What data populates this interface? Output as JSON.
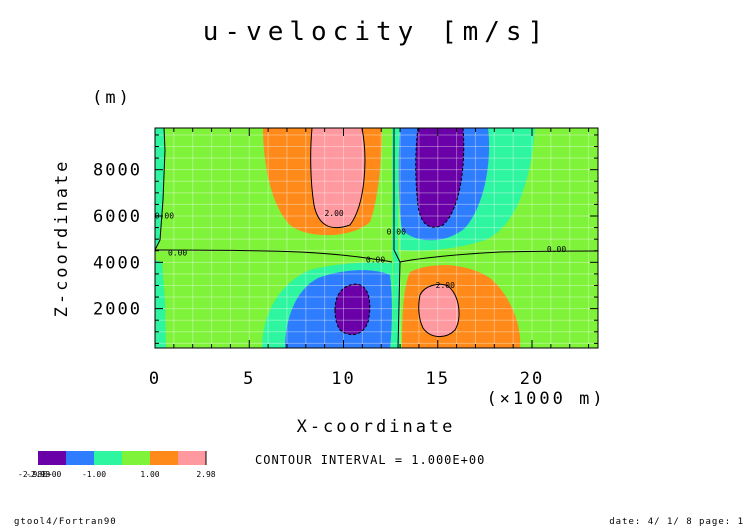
{
  "chart_data": {
    "type": "heatmap",
    "title": "u-velocity [m/s]",
    "xlabel": "X-coordinate",
    "xunit": "(×1000 m)",
    "ylabel": "Z-coordinate",
    "yunit": "(m)",
    "xlim": [
      0,
      23.5
    ],
    "ylim": [
      300,
      9800
    ],
    "xticks": [
      0,
      5,
      10,
      15,
      20
    ],
    "xtick_labels": [
      "0",
      "5",
      "10",
      "15",
      "20"
    ],
    "yticks": [
      2000,
      4000,
      6000,
      8000
    ],
    "ytick_labels": [
      "2000",
      "4000",
      "6000",
      "8000"
    ],
    "contour_interval_text": "CONTOUR INTERVAL = 1.000E+00",
    "contour_labels": [
      {
        "text": "2.00",
        "x": 9.5,
        "y": 6000
      },
      {
        "text": "0.00",
        "x": 0.5,
        "y": 5900
      },
      {
        "text": "0.00",
        "x": 1.2,
        "y": 4300
      },
      {
        "text": "0.00",
        "x": 11.7,
        "y": 4000
      },
      {
        "text": "0.00",
        "x": 12.8,
        "y": 5200
      },
      {
        "text": "0.00",
        "x": 21.3,
        "y": 4450
      },
      {
        "text": "2.00",
        "x": 15.4,
        "y": 2900
      }
    ],
    "colorbar": {
      "colors": [
        "#6a00a8",
        "#2f7dff",
        "#2ef5a0",
        "#7ff23a",
        "#ff8a19",
        "#ff99a0"
      ],
      "tick_labels": [
        "-2.98",
        "-1.00",
        "1.00",
        "2.98"
      ],
      "overlap_text": "-2.98E+00"
    },
    "regions": [
      {
        "level": "-3 to -2",
        "color": "#6a00a8",
        "centers": [
          [
            15.2,
            7200
          ],
          [
            10.0,
            1900
          ]
        ]
      },
      {
        "level": "-2 to -1",
        "color": "#2f7dff",
        "centers": [
          [
            15.5,
            6800
          ],
          [
            9.8,
            1500
          ]
        ]
      },
      {
        "level": "2 to 3",
        "color": "#ff99a0",
        "centers": [
          [
            10.2,
            7600
          ],
          [
            15.0,
            2000
          ]
        ]
      },
      {
        "level": "1 to 2",
        "color": "#ff8a19",
        "centers": [
          [
            9.5,
            7400
          ],
          [
            15.5,
            1700
          ]
        ]
      }
    ]
  },
  "footer": {
    "left": "gtool4/Fortran90",
    "right": "date: 4/ 1/ 8 page: 1"
  }
}
